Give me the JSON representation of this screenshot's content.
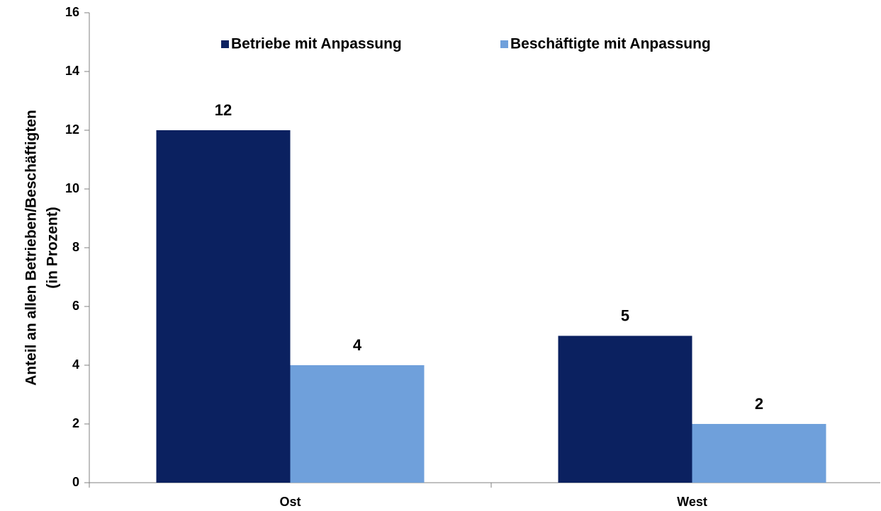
{
  "chart_data": {
    "type": "bar",
    "ylabel": [
      "Anteil an allen Betrieben/Beschäftigten",
      "(in Prozent)"
    ],
    "categories": [
      "Ost",
      "West"
    ],
    "series": [
      {
        "name": "Betriebe mit Anpassung",
        "color": "#0b2160",
        "values": [
          12,
          5
        ]
      },
      {
        "name": "Beschäftigte mit Anpassung",
        "color": "#6fa0db",
        "values": [
          4,
          2
        ]
      }
    ],
    "ylim": [
      0,
      16
    ],
    "yticks": [
      0,
      2,
      4,
      6,
      8,
      10,
      12,
      14,
      16
    ],
    "legend": "top"
  }
}
